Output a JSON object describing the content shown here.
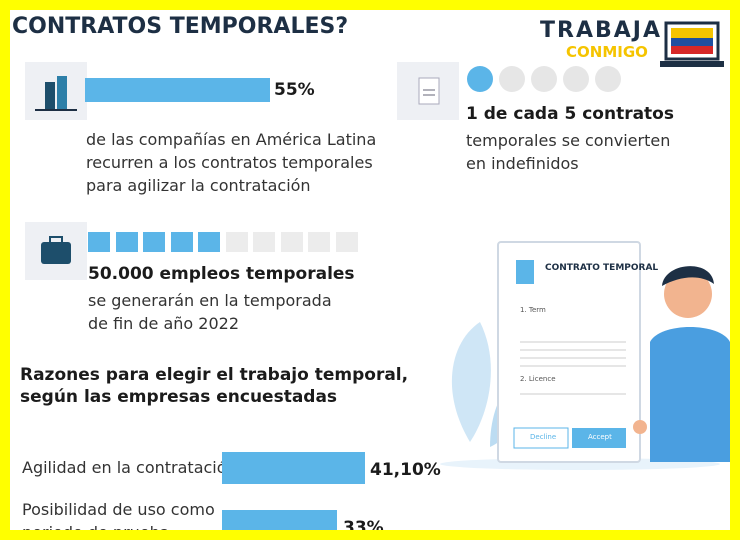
{
  "title": "CONTRATOS TEMPORALES?",
  "logo": {
    "line1": "TRABAJA",
    "line2": "CONMIGO"
  },
  "stat1": {
    "value": 55,
    "label": "55%",
    "lines": [
      "de las compañías en América Latina",
      "recurren a los contratos temporales",
      "para agilizar la contratación"
    ]
  },
  "stat2": {
    "heading": "1 de cada 5 contratos",
    "lines": [
      "temporales se convierten",
      "en indefinidos"
    ]
  },
  "stat3": {
    "heading": "50.000 empleos temporales",
    "lines": [
      "se generarán en la temporada",
      "de fin de año 2022"
    ]
  },
  "reasons": {
    "heading": [
      "Razones para elegir el trabajo temporal,",
      "según las empresas encuestadas"
    ],
    "items": [
      {
        "lines": [
          "Agilidad en la contratación"
        ],
        "value": 41.1,
        "label": "41,10%"
      },
      {
        "lines": [
          "Posibilidad de uso como",
          "periodo de prueba"
        ],
        "value": 33,
        "label": "33%"
      }
    ]
  },
  "document": {
    "title": "CONTRATO TEMPORAL",
    "item1": "1. Term",
    "item2": "2. Licence",
    "decline": "Decline",
    "accept": "Accept"
  }
}
